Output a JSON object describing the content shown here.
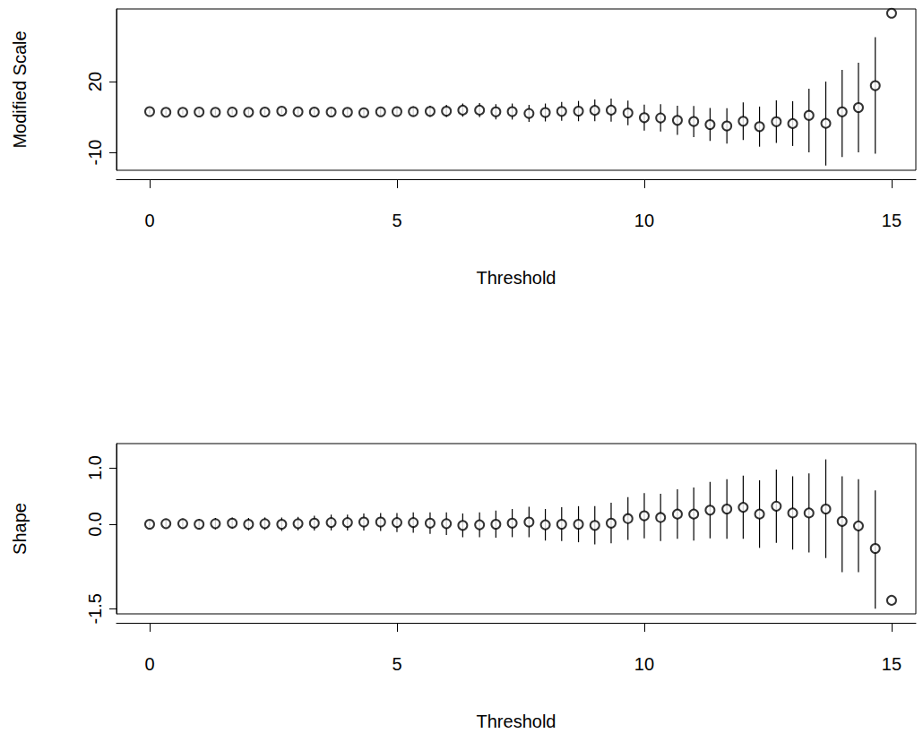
{
  "chart_data": [
    {
      "type": "scatter",
      "xlabel": "Threshold",
      "ylabel": "Modified Scale",
      "color": "#000000",
      "marker": "circle",
      "grid": false,
      "xlim": [
        -0.67,
        15.49
      ],
      "xticks": [
        0,
        5,
        10,
        15
      ],
      "ylim": [
        -17.6,
        50.8
      ],
      "yticks": [
        -10,
        20
      ],
      "x": [
        0,
        0.33,
        0.67,
        1,
        1.33,
        1.67,
        2,
        2.33,
        2.67,
        3,
        3.33,
        3.67,
        4,
        4.33,
        4.67,
        5,
        5.33,
        5.67,
        6,
        6.33,
        6.67,
        7,
        7.33,
        7.67,
        8,
        8.33,
        8.67,
        9,
        9.33,
        9.67,
        10,
        10.33,
        10.67,
        11,
        11.33,
        11.67,
        12,
        12.33,
        12.67,
        13,
        13.33,
        13.67,
        14,
        14.33,
        14.67,
        15
      ],
      "values": [
        7.3,
        7.0,
        7.0,
        7.1,
        7.0,
        7.1,
        7.0,
        7.1,
        7.5,
        7.2,
        7.1,
        7.1,
        7.0,
        6.8,
        7.2,
        7.3,
        7.3,
        7.4,
        7.5,
        7.9,
        7.9,
        7.2,
        7.3,
        6.5,
        6.9,
        7.4,
        7.5,
        7.8,
        7.9,
        6.7,
        4.7,
        4.6,
        3.6,
        3.1,
        1.8,
        1.2,
        3.2,
        0.9,
        3.0,
        2.2,
        5.7,
        2.3,
        7.2,
        9.0,
        18.3,
        49.0
      ],
      "lower": [
        6.3,
        6.0,
        6.0,
        6.0,
        5.9,
        5.9,
        5.8,
        5.8,
        6.2,
        5.8,
        5.6,
        5.5,
        5.3,
        5.0,
        5.3,
        5.3,
        5.1,
        5.0,
        4.9,
        5.1,
        4.9,
        4.0,
        3.9,
        2.9,
        3.1,
        3.4,
        3.2,
        3.2,
        3.0,
        1.5,
        -0.8,
        -1.2,
        -2.6,
        -3.5,
        -5.2,
        -6.3,
        -4.8,
        -7.6,
        -6.0,
        -7.3,
        -10.0,
        -15.6,
        -12.0,
        -10.0,
        -10.6,
        null
      ],
      "upper": [
        8.3,
        8.0,
        8.0,
        8.2,
        8.1,
        8.3,
        8.2,
        8.4,
        8.8,
        8.6,
        8.6,
        8.7,
        8.7,
        8.6,
        9.1,
        9.3,
        9.5,
        9.8,
        10.1,
        10.7,
        10.9,
        10.4,
        10.7,
        10.1,
        10.7,
        11.4,
        11.8,
        12.4,
        12.8,
        11.9,
        10.2,
        10.4,
        9.8,
        9.7,
        8.8,
        8.7,
        11.2,
        9.4,
        12.0,
        11.7,
        17.0,
        20.0,
        25.0,
        28.0,
        38.8,
        null
      ]
    },
    {
      "type": "scatter",
      "xlabel": "Threshold",
      "ylabel": "Shape",
      "color": "#000000",
      "marker": "circle",
      "grid": false,
      "xlim": [
        -0.67,
        15.49
      ],
      "xticks": [
        0,
        5,
        10,
        15
      ],
      "ylim": [
        -1.59,
        1.43
      ],
      "yticks": [
        {
          "value": -1.5,
          "label": "-1.5"
        },
        {
          "value": 0,
          "label": "0.0"
        },
        {
          "value": 1,
          "label": "1.0"
        }
      ],
      "x": [
        0,
        0.33,
        0.67,
        1,
        1.33,
        1.67,
        2,
        2.33,
        2.67,
        3,
        3.33,
        3.67,
        4,
        4.33,
        4.67,
        5,
        5.33,
        5.67,
        6,
        6.33,
        6.67,
        7,
        7.33,
        7.67,
        8,
        8.33,
        8.67,
        9,
        9.33,
        9.67,
        10,
        10.33,
        10.67,
        11,
        11.33,
        11.67,
        12,
        12.33,
        12.67,
        13,
        13.33,
        13.67,
        14,
        14.33,
        14.67,
        15
      ],
      "values": [
        0.0,
        0.01,
        0.01,
        0.0,
        0.01,
        0.02,
        0.0,
        0.01,
        0.0,
        0.01,
        0.02,
        0.03,
        0.03,
        0.04,
        0.04,
        0.03,
        0.03,
        0.02,
        0.01,
        -0.02,
        -0.01,
        0.0,
        0.02,
        0.04,
        -0.01,
        0.0,
        0.0,
        -0.02,
        0.02,
        0.1,
        0.15,
        0.12,
        0.18,
        0.18,
        0.25,
        0.27,
        0.3,
        0.18,
        0.32,
        0.2,
        0.2,
        0.27,
        0.05,
        -0.03,
        -0.43,
        -1.35
      ],
      "lower": [
        -0.08,
        -0.07,
        -0.08,
        -0.09,
        -0.09,
        -0.08,
        -0.11,
        -0.1,
        -0.12,
        -0.11,
        -0.11,
        -0.11,
        -0.11,
        -0.11,
        -0.12,
        -0.14,
        -0.15,
        -0.17,
        -0.19,
        -0.23,
        -0.23,
        -0.24,
        -0.23,
        -0.23,
        -0.29,
        -0.3,
        -0.32,
        -0.36,
        -0.34,
        -0.28,
        -0.25,
        -0.3,
        -0.26,
        -0.29,
        -0.25,
        -0.26,
        -0.26,
        -0.42,
        -0.33,
        -0.45,
        -0.5,
        -0.6,
        -0.85,
        -0.85,
        -1.5,
        null
      ],
      "upper": [
        0.08,
        0.09,
        0.1,
        0.09,
        0.11,
        0.12,
        0.11,
        0.12,
        0.12,
        0.13,
        0.15,
        0.17,
        0.17,
        0.19,
        0.2,
        0.2,
        0.21,
        0.21,
        0.21,
        0.19,
        0.21,
        0.24,
        0.27,
        0.31,
        0.27,
        0.3,
        0.32,
        0.32,
        0.38,
        0.48,
        0.55,
        0.54,
        0.62,
        0.65,
        0.75,
        0.8,
        0.86,
        0.78,
        0.97,
        0.85,
        0.9,
        1.15,
        0.85,
        0.8,
        0.6,
        null
      ]
    }
  ]
}
